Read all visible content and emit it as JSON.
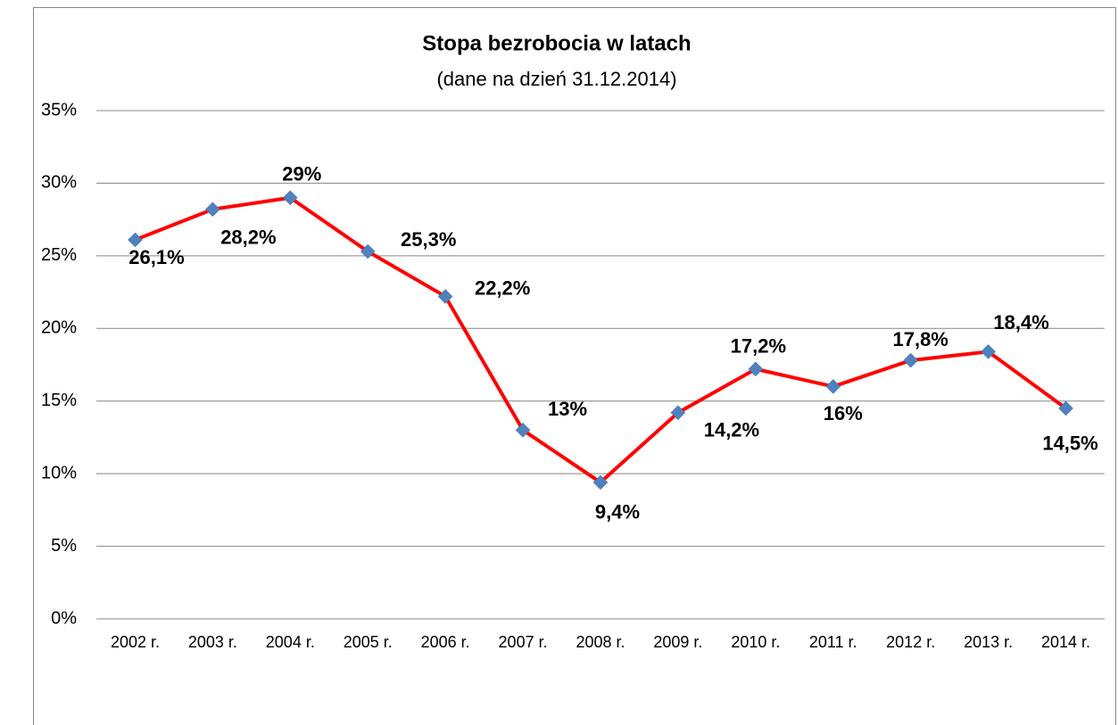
{
  "chart_data": {
    "type": "line",
    "title": "Stopa bezrobocia w latach",
    "subtitle": "(dane na dzień 31.12.2014)",
    "categories": [
      "2002 r.",
      "2003 r.",
      "2004 r.",
      "2005 r.",
      "2006 r.",
      "2007 r.",
      "2008 r.",
      "2009 r.",
      "2010 r.",
      "2011 r.",
      "2012 r.",
      "2013 r.",
      "2014 r."
    ],
    "series": [
      {
        "name": "Stopa bezrobocia",
        "color": "#ff0000",
        "marker_color": "#4f81bd",
        "values": [
          26.1,
          28.2,
          29,
          25.3,
          22.2,
          13,
          9.4,
          14.2,
          17.2,
          16,
          17.8,
          18.4,
          14.5
        ],
        "value_labels": [
          "26,1%",
          "28,2%",
          "29%",
          "25,3%",
          "22,2%",
          "13%",
          "9,4%",
          "14,2%",
          "17,2%",
          "16%",
          "17,8%",
          "18,4%",
          "14,5%"
        ]
      }
    ],
    "ylim": [
      0,
      35
    ],
    "yticks": [
      {
        "value": 0,
        "label": "0%"
      },
      {
        "value": 5,
        "label": "5%"
      },
      {
        "value": 10,
        "label": "10%"
      },
      {
        "value": 15,
        "label": "15%"
      },
      {
        "value": 20,
        "label": "20%"
      },
      {
        "value": 25,
        "label": "25%"
      },
      {
        "value": 30,
        "label": "30%"
      },
      {
        "value": 35,
        "label": "35%"
      }
    ],
    "grid": true
  }
}
